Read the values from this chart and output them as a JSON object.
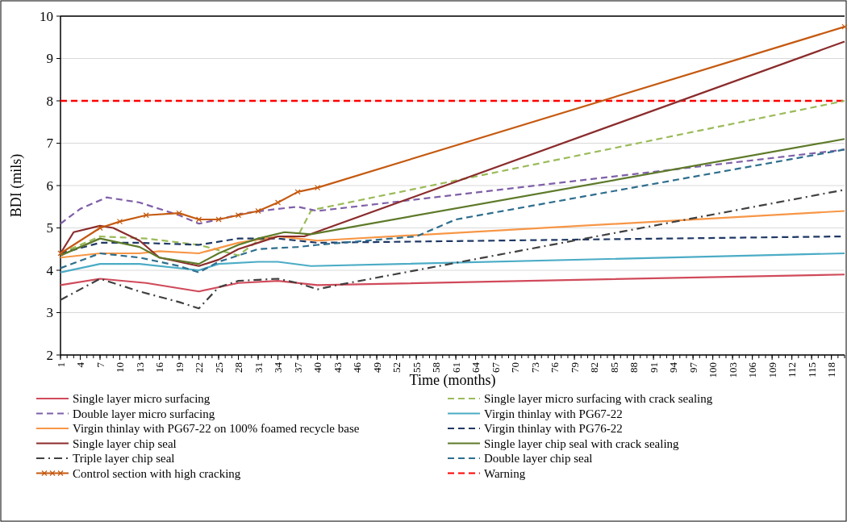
{
  "chart_data": {
    "type": "line",
    "xlabel": "Time (months)",
    "ylabel": "BDI (mils)",
    "xlim": [
      1,
      120
    ],
    "xticks": [
      1,
      4,
      7,
      10,
      13,
      16,
      19,
      22,
      25,
      28,
      31,
      34,
      37,
      40,
      43,
      46,
      49,
      52,
      55,
      58,
      61,
      64,
      67,
      70,
      73,
      76,
      79,
      82,
      85,
      88,
      91,
      94,
      97,
      100,
      103,
      106,
      109,
      112,
      115,
      118
    ],
    "ylim": [
      2,
      10
    ],
    "yticks": [
      2,
      3,
      4,
      5,
      6,
      7,
      8,
      9,
      10
    ],
    "grid": "y",
    "legend": "bottom",
    "marker": "none",
    "series": [
      {
        "name": "Single layer micro surfacing",
        "color": "#d04a5a",
        "line_style": "solid",
        "x": [
          1,
          7,
          14,
          22,
          28,
          34,
          40,
          120
        ],
        "values": [
          3.65,
          3.8,
          3.7,
          3.5,
          3.7,
          3.75,
          3.65,
          3.9
        ]
      },
      {
        "name": "Single layer micro surfacing with crack sealing",
        "color": "#9bbb59",
        "line_style": "dashed",
        "x": [
          1,
          7,
          14,
          22,
          28,
          31,
          34,
          37,
          39,
          40,
          120
        ],
        "values": [
          4.4,
          4.8,
          4.75,
          4.6,
          4.35,
          4.7,
          4.8,
          4.8,
          5.4,
          5.45,
          8.0
        ]
      },
      {
        "name": "Double layer micro surfacing",
        "color": "#7f60a8",
        "line_style": "dashed",
        "x": [
          1,
          4,
          8,
          13,
          19,
          22,
          25,
          29,
          34,
          37,
          40,
          120
        ],
        "values": [
          5.1,
          5.45,
          5.72,
          5.6,
          5.3,
          5.1,
          5.2,
          5.35,
          5.45,
          5.5,
          5.4,
          6.85
        ]
      },
      {
        "name": "Virgin thinlay with PG67-22",
        "color": "#4bacc6",
        "line_style": "solid",
        "x": [
          1,
          7,
          13,
          22,
          25,
          31,
          34,
          39,
          120
        ],
        "values": [
          3.95,
          4.15,
          4.15,
          4.0,
          4.15,
          4.2,
          4.2,
          4.1,
          4.4
        ]
      },
      {
        "name": "Virgin thinlay with PG67-22 on 100% foamed recycle base",
        "color": "#f79646",
        "line_style": "solid",
        "x": [
          1,
          7,
          13,
          16,
          22,
          28,
          34,
          37,
          40,
          120
        ],
        "values": [
          4.3,
          4.4,
          4.4,
          4.45,
          4.4,
          4.65,
          4.8,
          4.75,
          4.7,
          5.4
        ]
      },
      {
        "name": "Virgin thinlay with PG76-22",
        "color": "#1f3864",
        "line_style": "dashed",
        "x": [
          1,
          7,
          13,
          22,
          28,
          34,
          40,
          120
        ],
        "values": [
          4.4,
          4.65,
          4.65,
          4.6,
          4.75,
          4.75,
          4.65,
          4.8
        ]
      },
      {
        "name": "Single layer chip seal",
        "color": "#8b2c2c",
        "line_style": "solid",
        "x": [
          1,
          3,
          7,
          9,
          13,
          16,
          22,
          25,
          28,
          31,
          34,
          38,
          120
        ],
        "values": [
          4.4,
          4.9,
          5.05,
          5.0,
          4.7,
          4.3,
          4.1,
          4.25,
          4.5,
          4.65,
          4.8,
          4.8,
          9.4
        ]
      },
      {
        "name": "Single layer chip seal with crack sealing",
        "color": "#5e7a2a",
        "line_style": "solid",
        "x": [
          1,
          7,
          13,
          16,
          22,
          25,
          28,
          31,
          35,
          39,
          120
        ],
        "values": [
          4.35,
          4.75,
          4.55,
          4.3,
          4.15,
          4.4,
          4.6,
          4.75,
          4.9,
          4.85,
          7.1
        ]
      },
      {
        "name": "Triple layer chip seal",
        "color": "#404040",
        "line_style": "dashdot",
        "x": [
          1,
          7,
          13,
          19,
          22,
          25,
          28,
          34,
          37,
          40,
          43,
          120
        ],
        "values": [
          3.3,
          3.8,
          3.5,
          3.25,
          3.1,
          3.6,
          3.75,
          3.8,
          3.7,
          3.55,
          3.65,
          5.9
        ]
      },
      {
        "name": "Double layer chip seal",
        "color": "#2e6e8e",
        "line_style": "dashed",
        "x": [
          1,
          7,
          13,
          19,
          22,
          25,
          31,
          37,
          40,
          55,
          58,
          61,
          120
        ],
        "values": [
          4.05,
          4.4,
          4.3,
          4.1,
          3.95,
          4.2,
          4.5,
          4.55,
          4.6,
          4.8,
          5.0,
          5.2,
          6.85
        ]
      },
      {
        "name": "Control section with high cracking",
        "color": "#c55a11",
        "line_style": "solid",
        "marker": "cross",
        "x": [
          1,
          7,
          10,
          14,
          19,
          22,
          25,
          28,
          31,
          34,
          37,
          40,
          120
        ],
        "values": [
          4.4,
          5.0,
          5.15,
          5.3,
          5.35,
          5.2,
          5.2,
          5.3,
          5.4,
          5.6,
          5.85,
          5.95,
          9.75
        ]
      }
    ],
    "ref_lines": [
      {
        "axis": "y",
        "value": 8,
        "label": "Warning",
        "color": "#ff0000",
        "line_style": "dashed"
      }
    ]
  }
}
